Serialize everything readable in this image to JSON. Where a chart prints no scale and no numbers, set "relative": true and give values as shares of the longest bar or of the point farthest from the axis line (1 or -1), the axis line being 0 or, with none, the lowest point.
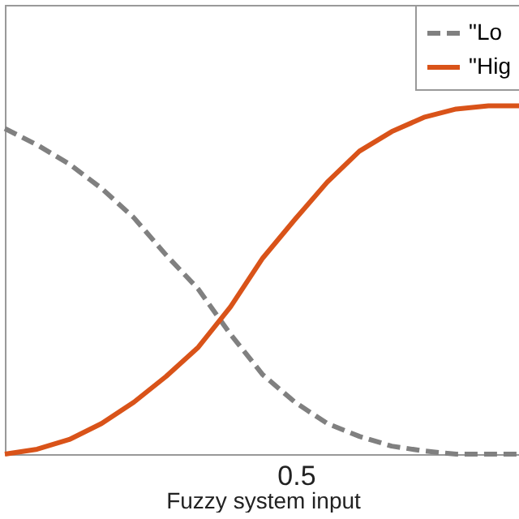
{
  "chart_data": {
    "type": "line",
    "xlabel": "Fuzzy system input",
    "relative": true,
    "legend": "top right",
    "marker": "none",
    "categories": [
      null,
      null,
      null,
      null,
      null,
      null,
      null,
      null,
      null,
      null,
      null,
      null,
      null,
      null,
      null,
      null,
      null
    ],
    "annotations": [
      "0.5"
    ],
    "series": [
      {
        "name": "\"Lo",
        "color": "#808080",
        "line_style": "dashed",
        "values": [
          0.935,
          0.888,
          0.833,
          0.763,
          0.679,
          0.572,
          0.474,
          0.344,
          0.228,
          0.149,
          0.088,
          0.051,
          0.023,
          0.009,
          0,
          0,
          0
        ]
      },
      {
        "name": "\"Hig",
        "color": "#d95319",
        "line_style": "solid",
        "values": [
          0,
          0.014,
          0.042,
          0.088,
          0.149,
          0.223,
          0.307,
          0.423,
          0.563,
          0.674,
          0.781,
          0.87,
          0.926,
          0.967,
          0.991,
          1,
          1
        ]
      }
    ]
  }
}
